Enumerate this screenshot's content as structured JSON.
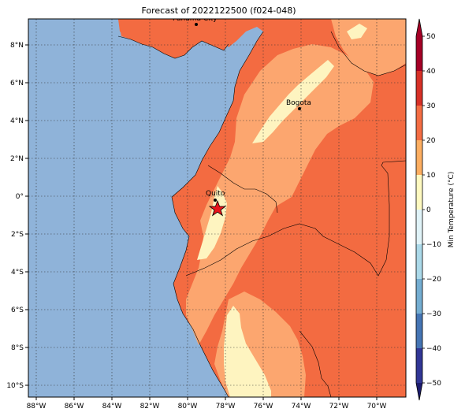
{
  "title": "Forecast of 2022122500 (f024-048)",
  "map": {
    "lon_ticks": [
      "88°W",
      "86°W",
      "84°W",
      "82°W",
      "80°W",
      "78°W",
      "76°W",
      "74°W",
      "72°W",
      "70°W"
    ],
    "lat_ticks": [
      "8°N",
      "6°N",
      "4°N",
      "2°N",
      "0°",
      "2°S",
      "4°S",
      "6°S",
      "8°S",
      "10°S"
    ],
    "cities": [
      {
        "name": "Panama City"
      },
      {
        "name": "Bogota"
      },
      {
        "name": "Quito"
      }
    ],
    "marker": "forecast-location-star"
  },
  "colorbar": {
    "label": "Min Temperature (°C)",
    "ticks": [
      "50",
      "40",
      "30",
      "20",
      "10",
      "0",
      "−10",
      "−20",
      "−30",
      "−40",
      "−50"
    ],
    "colors": {
      "c_m50": "#313695",
      "c_m40": "#4575b4",
      "c_m30": "#74add1",
      "c_m20": "#abd9e9",
      "c_m10": "#e0f3f8",
      "c_0": "#fef9c0",
      "c_10": "#fdae61",
      "c_20": "#f46d43",
      "c_30": "#d73027",
      "c_40": "#a50026"
    }
  },
  "colors": {
    "ocean": "#8fb3d9",
    "land_cool": "#fef4c0",
    "land_mid": "#fca66f",
    "land_warm": "#f36b41"
  }
}
